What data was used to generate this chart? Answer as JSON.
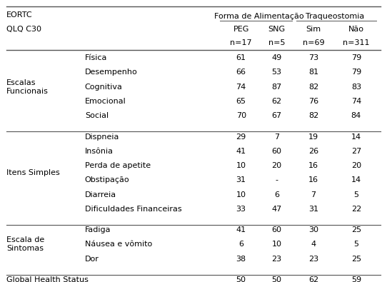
{
  "title_line1": "EORTC",
  "title_line2": "QLQ C30",
  "col_group1": "Forma de Alimentação",
  "col_group2": "Traqueostomia",
  "col_labels": [
    "PEG",
    "SNG",
    "Sim",
    "Não"
  ],
  "col_ns": [
    "n=17",
    "n=5",
    "n=69",
    "n=311"
  ],
  "sections": [
    {
      "label": [
        "Escalas",
        "Funcionais"
      ],
      "rows": [
        {
          "name": "Física",
          "vals": [
            "61",
            "49",
            "73",
            "79"
          ]
        },
        {
          "name": "Desempenho",
          "vals": [
            "66",
            "53",
            "81",
            "79"
          ]
        },
        {
          "name": "Cognitiva",
          "vals": [
            "74",
            "87",
            "82",
            "83"
          ]
        },
        {
          "name": "Emocional",
          "vals": [
            "65",
            "62",
            "76",
            "74"
          ]
        },
        {
          "name": "Social",
          "vals": [
            "70",
            "67",
            "82",
            "84"
          ]
        }
      ]
    },
    {
      "label": [
        "Itens Simples",
        ""
      ],
      "rows": [
        {
          "name": "Dispneia",
          "vals": [
            "29",
            "7",
            "19",
            "14"
          ]
        },
        {
          "name": "Insônia",
          "vals": [
            "41",
            "60",
            "26",
            "27"
          ]
        },
        {
          "name": "Perda de apetite",
          "vals": [
            "10",
            "20",
            "16",
            "20"
          ]
        },
        {
          "name": "Obstipação",
          "vals": [
            "31",
            "-",
            "16",
            "14"
          ]
        },
        {
          "name": "Diarreia",
          "vals": [
            "10",
            "6",
            "7",
            "5"
          ]
        },
        {
          "name": "Dificuldades Financeiras",
          "vals": [
            "33",
            "47",
            "31",
            "22"
          ]
        }
      ]
    },
    {
      "label": [
        "Escala de",
        "Sintomas"
      ],
      "rows": [
        {
          "name": "Fadiga",
          "vals": [
            "41",
            "60",
            "30",
            "25"
          ]
        },
        {
          "name": "Náusea e vômito",
          "vals": [
            "6",
            "10",
            "4",
            "5"
          ]
        },
        {
          "name": "Dor",
          "vals": [
            "38",
            "23",
            "23",
            "25"
          ]
        }
      ]
    }
  ],
  "footer_label": "Global Health Status",
  "footer_vals": [
    "50",
    "50",
    "62",
    "59"
  ],
  "font_size": 8.0,
  "bg_color": "#ffffff",
  "text_color": "#000000",
  "line_color": "#555555"
}
